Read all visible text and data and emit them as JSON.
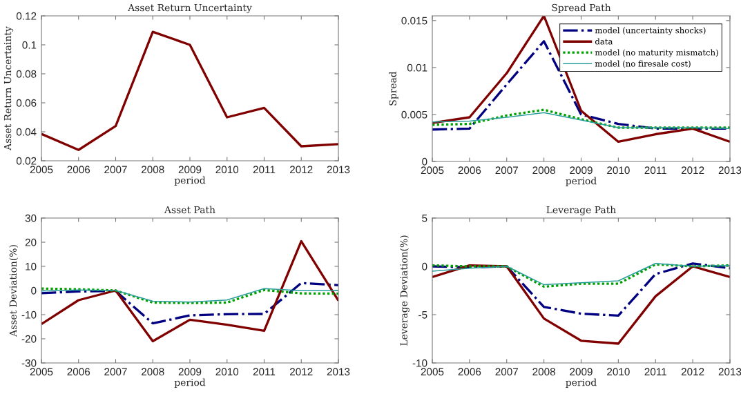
{
  "chart_data": [
    {
      "type": "line",
      "title": "Asset Return Uncertainty",
      "xlabel": "period",
      "ylabel": "Asset Return Uncertainty",
      "x": [
        2005,
        2006,
        2007,
        2008,
        2009,
        2010,
        2011,
        2012,
        2013
      ],
      "xlim": [
        2005,
        2013
      ],
      "xticks": [
        2005,
        2006,
        2007,
        2008,
        2009,
        2010,
        2011,
        2012,
        2013
      ],
      "ylim": [
        0.02,
        0.12
      ],
      "yticks": [
        0.02,
        0.04,
        0.06,
        0.08,
        0.1,
        0.12
      ],
      "series": [
        {
          "color": "#800000",
          "line_style": "solid",
          "values": [
            0.0385,
            0.0275,
            0.044,
            0.109,
            0.1,
            0.05,
            0.0565,
            0.03,
            0.0315
          ]
        }
      ]
    },
    {
      "type": "line",
      "title": "Spread Path",
      "xlabel": "period",
      "ylabel": "Spread",
      "x": [
        2005,
        2006,
        2007,
        2008,
        2009,
        2010,
        2011,
        2012,
        2013
      ],
      "xlim": [
        2005,
        2013
      ],
      "xticks": [
        2005,
        2006,
        2007,
        2008,
        2009,
        2010,
        2011,
        2012,
        2013
      ],
      "ylim": [
        0,
        0.0155
      ],
      "yticks": [
        0,
        0.005,
        0.01,
        0.015
      ],
      "legend": "top right",
      "series": [
        {
          "name": "model (uncertainty shocks)",
          "color": "#000080",
          "line_style": "dashdot",
          "values": [
            0.0034,
            0.0035,
            0.0082,
            0.0128,
            0.005,
            0.004,
            0.0035,
            0.0035,
            0.0035
          ]
        },
        {
          "name": "data",
          "color": "#800000",
          "line_style": "solid",
          "values": [
            0.0041,
            0.0047,
            0.0094,
            0.0155,
            0.0054,
            0.0021,
            0.0029,
            0.0035,
            0.0021
          ]
        },
        {
          "name": "model (no maturity mismatch)",
          "color": "#00a000",
          "line_style": "dotted",
          "values": [
            0.0039,
            0.004,
            0.0049,
            0.0055,
            0.0045,
            0.0036,
            0.0036,
            0.0036,
            0.0036
          ]
        },
        {
          "name": "model (no firesale cost)",
          "color": "#2a9d9d",
          "line_style": "solid",
          "values": [
            0.0042,
            0.0043,
            0.0047,
            0.0052,
            0.0044,
            0.0036,
            0.0036,
            0.0036,
            0.0035
          ]
        }
      ]
    },
    {
      "type": "line",
      "title": "Asset Path",
      "xlabel": "period",
      "ylabel": "Asset Deviation(%)",
      "x": [
        2005,
        2006,
        2007,
        2008,
        2009,
        2010,
        2011,
        2012,
        2013
      ],
      "xlim": [
        2005,
        2013
      ],
      "xticks": [
        2005,
        2006,
        2007,
        2008,
        2009,
        2010,
        2011,
        2012,
        2013
      ],
      "ylim": [
        -30,
        30
      ],
      "yticks": [
        -30,
        -20,
        -10,
        0,
        10,
        20,
        30
      ],
      "series": [
        {
          "color": "#000080",
          "line_style": "dashdot",
          "values": [
            -1.1,
            -0.4,
            -0.2,
            -13.6,
            -10.3,
            -9.8,
            -9.7,
            3.1,
            2.2
          ]
        },
        {
          "color": "#800000",
          "line_style": "solid",
          "values": [
            -13.9,
            -4.0,
            0,
            -21.0,
            -12.1,
            -14.2,
            -16.7,
            20.4,
            -4.2
          ]
        },
        {
          "color": "#00a000",
          "line_style": "dotted",
          "values": [
            0.8,
            0.5,
            0,
            -5.0,
            -5.2,
            -5.0,
            0.2,
            -1.2,
            -1.3
          ]
        },
        {
          "color": "#2a9d9d",
          "line_style": "solid",
          "values": [
            -0.2,
            0.2,
            0,
            -4.4,
            -4.8,
            -3.9,
            0.8,
            -0.1,
            -0.1
          ]
        }
      ]
    },
    {
      "type": "line",
      "title": "Leverage Path",
      "xlabel": "period",
      "ylabel": "Leverage Deviation(%)",
      "x": [
        2005,
        2006,
        2007,
        2008,
        2009,
        2010,
        2011,
        2012,
        2013
      ],
      "xlim": [
        2005,
        2013
      ],
      "xticks": [
        2005,
        2006,
        2007,
        2008,
        2009,
        2010,
        2011,
        2012,
        2013
      ],
      "ylim": [
        -10,
        5
      ],
      "yticks": [
        -10,
        -5,
        0,
        5
      ],
      "series": [
        {
          "color": "#000080",
          "line_style": "dashdot",
          "values": [
            0.0,
            -0.1,
            0,
            -4.2,
            -4.9,
            -5.1,
            -0.8,
            0.3,
            -0.2
          ]
        },
        {
          "color": "#800000",
          "line_style": "solid",
          "values": [
            -1.1,
            0.1,
            0,
            -5.4,
            -7.7,
            -8.0,
            -3.1,
            0.0,
            -1.1
          ]
        },
        {
          "color": "#00a000",
          "line_style": "dotted",
          "values": [
            0.1,
            0.0,
            0,
            -2.1,
            -1.8,
            -1.8,
            0.2,
            0,
            0.1
          ]
        },
        {
          "color": "#2a9d9d",
          "line_style": "solid",
          "values": [
            -0.5,
            -0.2,
            0,
            -1.9,
            -1.7,
            -1.5,
            0.3,
            0,
            0.1
          ]
        }
      ]
    }
  ]
}
